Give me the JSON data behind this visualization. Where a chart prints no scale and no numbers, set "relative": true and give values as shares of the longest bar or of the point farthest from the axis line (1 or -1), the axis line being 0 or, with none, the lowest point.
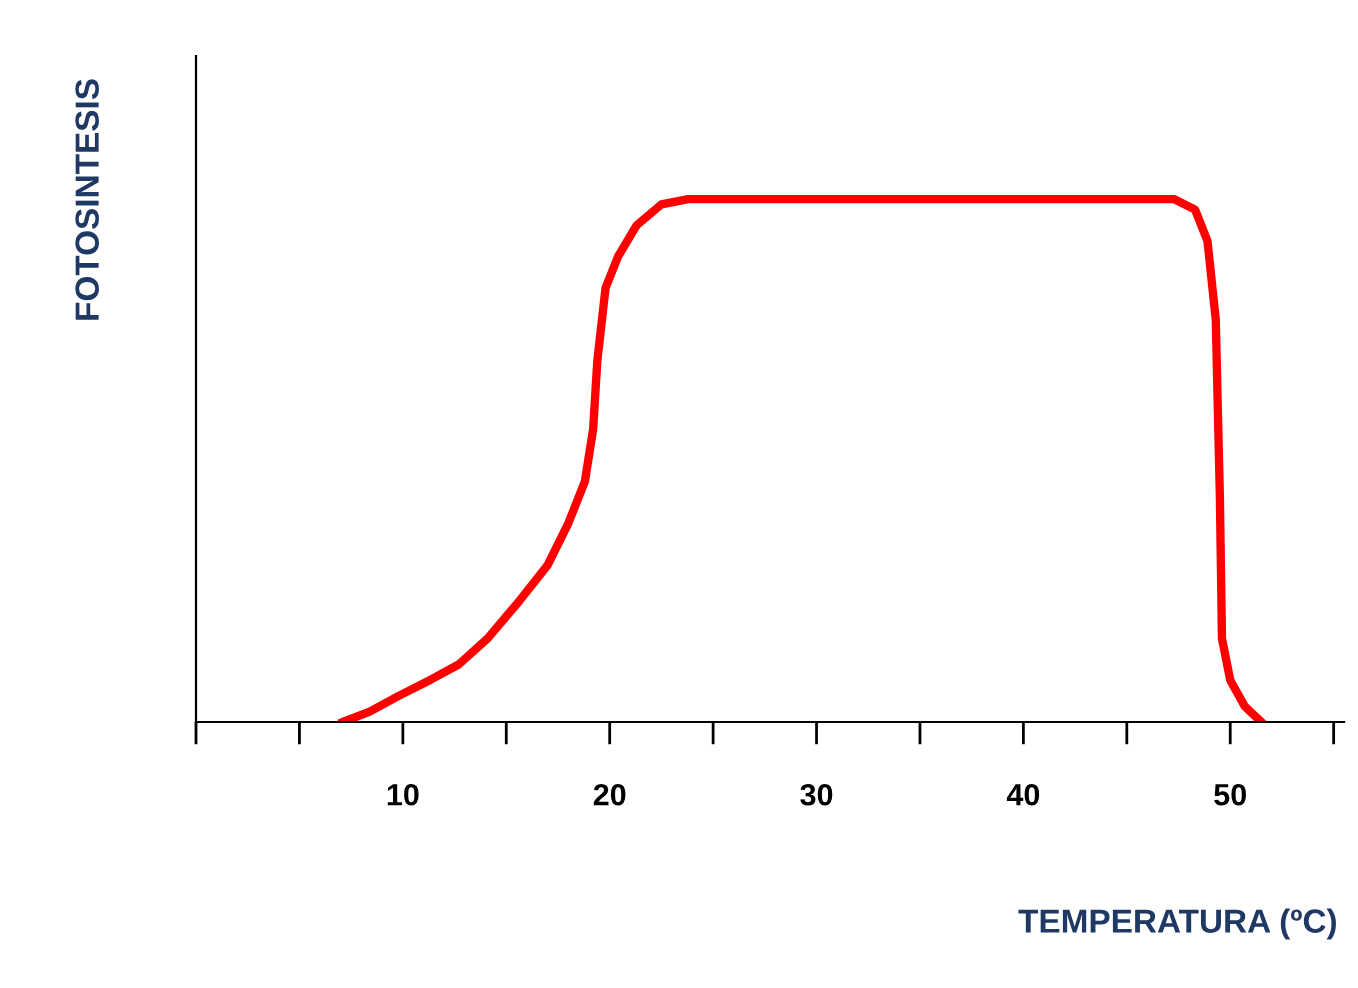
{
  "chart_data": {
    "type": "line",
    "relative": true,
    "xlabel": "TEMPERATURA (ºC)",
    "ylabel": "FOTOSINTESIS",
    "x": [
      7.1,
      8.4,
      9.8,
      11.3,
      12.7,
      14.1,
      15.6,
      17.0,
      18.0,
      18.8,
      19.2,
      19.4,
      19.8,
      20.4,
      21.3,
      22.5,
      23.8,
      47.3,
      48.3,
      48.9,
      49.3,
      49.5,
      49.6,
      50.0,
      50.7,
      51.5
    ],
    "series": [
      {
        "color": "#ff0000",
        "values": [
          0,
          0.02,
          0.05,
          0.08,
          0.11,
          0.16,
          0.23,
          0.3,
          0.38,
          0.46,
          0.56,
          0.69,
          0.83,
          0.89,
          0.95,
          0.99,
          1,
          1,
          0.98,
          0.92,
          0.77,
          0.43,
          0.16,
          0.08,
          0.03,
          0
        ]
      }
    ],
    "xlim": [
      0,
      55.5
    ],
    "xticks": [
      {
        "value": 0,
        "label": null
      },
      {
        "value": 5,
        "label": null
      },
      10,
      {
        "value": 15,
        "label": null
      },
      20,
      {
        "value": 25,
        "label": null
      },
      30,
      {
        "value": 35,
        "label": null
      },
      40,
      {
        "value": 45,
        "label": null
      },
      50,
      {
        "value": 55,
        "label": null
      }
    ],
    "grid": false,
    "legend": false,
    "marker": "none",
    "line_style": "solid"
  }
}
